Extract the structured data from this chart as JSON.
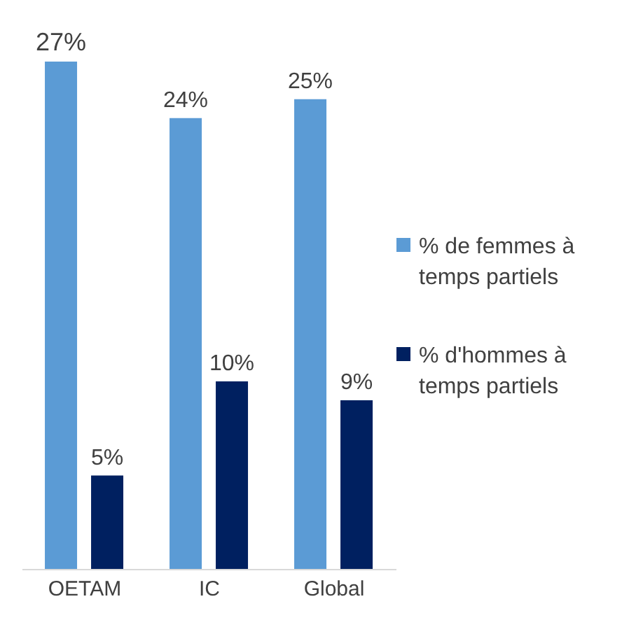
{
  "chart_data": {
    "type": "bar",
    "categories": [
      "OETAM",
      "IC",
      "Global"
    ],
    "series": [
      {
        "name": "% de femmes à temps partiels",
        "color": "#5b9bd5",
        "values": [
          27,
          24,
          25
        ],
        "value_labels": [
          "27%",
          "24%",
          "25%"
        ]
      },
      {
        "name": "% d'hommes à temps partiels",
        "color": "#002060",
        "values": [
          5,
          10,
          9
        ],
        "value_labels": [
          "5%",
          "10%",
          "9%"
        ]
      }
    ],
    "legend": "right",
    "grid": false
  }
}
